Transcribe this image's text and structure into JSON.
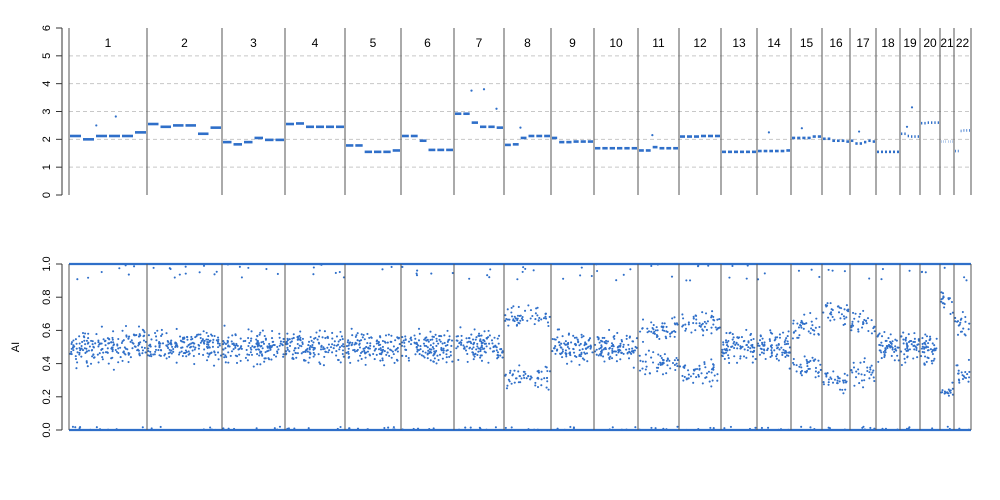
{
  "chart_data": [
    {
      "type": "scatter",
      "title": "",
      "xlabel": "",
      "ylabel": "",
      "ylim": [
        0,
        6
      ],
      "yticks": [
        "0",
        "1",
        "2",
        "3",
        "4",
        "5",
        "6"
      ],
      "grid": "dashed horizontal at 1,2,3,4,5",
      "color": "#2f6fc9",
      "chromosomes": [
        "1",
        "2",
        "3",
        "4",
        "5",
        "6",
        "7",
        "8",
        "9",
        "10",
        "11",
        "12",
        "13",
        "14",
        "15",
        "16",
        "17",
        "18",
        "19",
        "20",
        "21",
        "22"
      ],
      "segments": [
        {
          "chr": "1",
          "values": [
            2.12,
            2.0,
            2.12,
            2.12,
            2.12,
            2.25
          ],
          "outliers": [
            2.5,
            2.82
          ]
        },
        {
          "chr": "2",
          "values": [
            2.55,
            2.45,
            2.5,
            2.5,
            2.2,
            2.42
          ],
          "outliers": []
        },
        {
          "chr": "3",
          "values": [
            1.9,
            1.82,
            1.9,
            2.05,
            1.98,
            1.98
          ],
          "outliers": []
        },
        {
          "chr": "4",
          "values": [
            2.55,
            2.57,
            2.45,
            2.45,
            2.45,
            2.45
          ],
          "outliers": []
        },
        {
          "chr": "5",
          "values": [
            1.78,
            1.78,
            1.55,
            1.55,
            1.55,
            1.6
          ],
          "outliers": []
        },
        {
          "chr": "6",
          "values": [
            2.12,
            2.12,
            1.95,
            1.62,
            1.62,
            1.62
          ],
          "outliers": []
        },
        {
          "chr": "7",
          "values": [
            2.92,
            2.92,
            2.6,
            2.45,
            2.45,
            2.42
          ],
          "outliers": [
            3.75,
            3.8,
            3.1
          ]
        },
        {
          "chr": "8",
          "values": [
            1.8,
            1.82,
            2.05,
            2.12,
            2.12,
            2.12
          ],
          "outliers": [
            2.42
          ]
        },
        {
          "chr": "9",
          "values": [
            2.05,
            1.9,
            1.9,
            1.92,
            1.92,
            1.92
          ],
          "outliers": []
        },
        {
          "chr": "10",
          "values": [
            1.68,
            1.68,
            1.68,
            1.68,
            1.68,
            1.68
          ],
          "outliers": []
        },
        {
          "chr": "11",
          "values": [
            1.6,
            1.6,
            1.72,
            1.68,
            1.68,
            1.68
          ],
          "outliers": [
            2.15
          ]
        },
        {
          "chr": "12",
          "values": [
            2.1,
            2.1,
            2.1,
            2.12,
            2.12,
            2.12
          ],
          "outliers": []
        },
        {
          "chr": "13",
          "values": [
            1.55,
            1.55,
            1.55,
            1.55,
            1.55,
            1.55
          ],
          "outliers": []
        },
        {
          "chr": "14",
          "values": [
            1.58,
            1.58,
            1.58,
            1.58,
            1.58,
            1.6
          ],
          "outliers": [
            2.25
          ]
        },
        {
          "chr": "15",
          "values": [
            2.05,
            2.05,
            2.05,
            2.05,
            2.1,
            2.1
          ],
          "outliers": [
            2.4
          ]
        },
        {
          "chr": "16",
          "values": [
            2.02,
            2.02,
            1.95,
            1.95,
            1.95,
            1.92
          ],
          "outliers": []
        },
        {
          "chr": "17",
          "values": [
            1.95,
            1.85,
            1.85,
            1.9,
            1.95,
            1.92
          ],
          "outliers": [
            2.28
          ]
        },
        {
          "chr": "18",
          "values": [
            1.55,
            1.55,
            1.55,
            1.55,
            1.55,
            1.55
          ],
          "outliers": []
        },
        {
          "chr": "19",
          "values": [
            2.2,
            2.2,
            2.12,
            2.1,
            2.1,
            2.1
          ],
          "outliers": [
            2.45,
            3.15
          ]
        },
        {
          "chr": "20",
          "values": [
            2.58,
            2.58,
            2.6,
            2.6,
            2.6,
            2.6
          ],
          "outliers": []
        },
        {
          "chr": "21",
          "values": [
            1.92,
            1.92,
            1.92,
            1.92,
            1.92,
            1.92
          ],
          "outliers": []
        },
        {
          "chr": "22",
          "values": [
            1.58,
            1.58,
            2.3,
            2.32,
            2.32,
            2.32
          ],
          "outliers": []
        }
      ]
    },
    {
      "type": "scatter",
      "title": "",
      "xlabel": "",
      "ylabel": "AI",
      "ylim": [
        0,
        1
      ],
      "yticks": [
        "0.0",
        "0.2",
        "0.4",
        "0.6",
        "0.8",
        "1.0"
      ],
      "grid": "off",
      "color": "#2f6fc9",
      "baseline_values": [
        0,
        1
      ],
      "chromosomes": [
        {
          "chr": "1",
          "clusters": [
            0.5
          ]
        },
        {
          "chr": "2",
          "clusters": [
            0.5
          ]
        },
        {
          "chr": "3",
          "clusters": [
            0.5
          ]
        },
        {
          "chr": "4",
          "clusters": [
            0.5
          ]
        },
        {
          "chr": "5",
          "clusters": [
            0.5
          ]
        },
        {
          "chr": "6",
          "clusters": [
            0.5
          ]
        },
        {
          "chr": "7",
          "clusters": [
            0.5
          ]
        },
        {
          "chr": "8",
          "clusters": [
            0.32,
            0.68
          ]
        },
        {
          "chr": "9",
          "clusters": [
            0.5
          ]
        },
        {
          "chr": "10",
          "clusters": [
            0.5
          ]
        },
        {
          "chr": "11",
          "clusters": [
            0.4,
            0.6
          ]
        },
        {
          "chr": "12",
          "clusters": [
            0.35,
            0.65
          ]
        },
        {
          "chr": "13",
          "clusters": [
            0.5
          ]
        },
        {
          "chr": "14",
          "clusters": [
            0.5
          ]
        },
        {
          "chr": "15",
          "clusters": [
            0.38,
            0.62
          ]
        },
        {
          "chr": "16",
          "clusters": [
            0.3,
            0.7
          ]
        },
        {
          "chr": "17",
          "clusters": [
            0.35,
            0.65
          ]
        },
        {
          "chr": "18",
          "clusters": [
            0.5
          ]
        },
        {
          "chr": "19",
          "clusters": [
            0.5
          ]
        },
        {
          "chr": "20",
          "clusters": [
            0.5
          ]
        },
        {
          "chr": "21",
          "clusters": [
            0.22,
            0.78
          ]
        },
        {
          "chr": "22",
          "clusters": [
            0.35,
            0.65
          ]
        }
      ]
    }
  ]
}
